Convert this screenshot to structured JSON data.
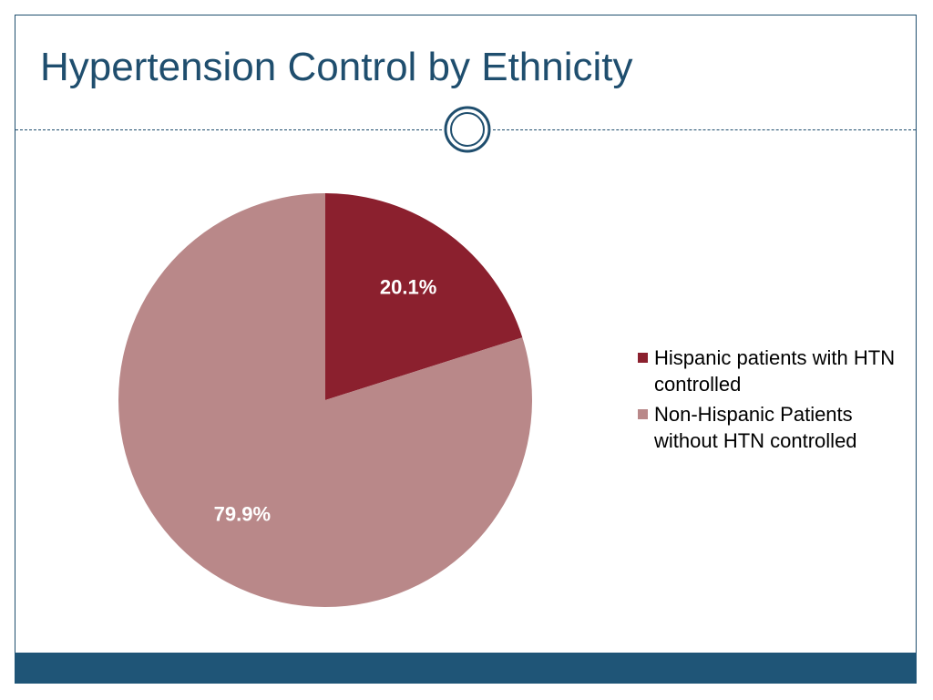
{
  "slide": {
    "title": "Hypertension Control by Ethnicity"
  },
  "colors": {
    "title": "#1f4e6e",
    "footer_bar": "#1f5577"
  },
  "chart_data": {
    "type": "pie",
    "slices": [
      {
        "label": "Hispanic patients with HTN controlled",
        "value": 20.1,
        "display": "20.1%",
        "color": "#8b202e"
      },
      {
        "label": "Non-Hispanic Patients without HTN controlled",
        "value": 79.9,
        "display": "79.9%",
        "color": "#b98889"
      }
    ],
    "start_angle": "12 o'clock",
    "direction": "clockwise",
    "legend_position": "right"
  }
}
